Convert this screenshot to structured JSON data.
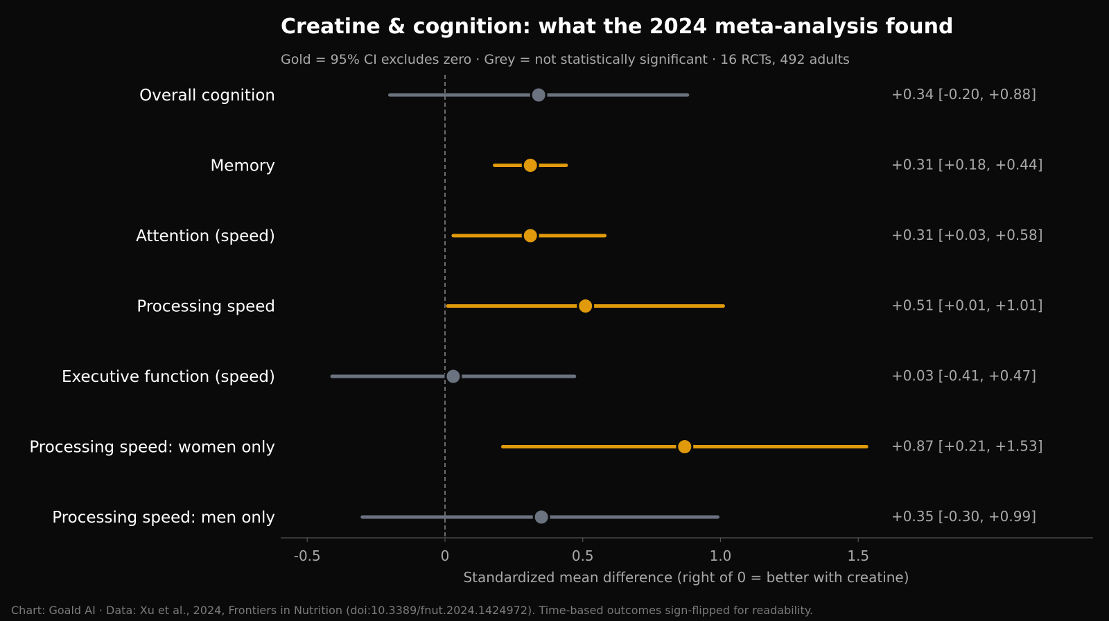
{
  "chart_data": {
    "type": "forest",
    "title": "Creatine & cognition: what the 2024 meta-analysis found",
    "subtitle": "Gold = 95% CI excludes zero · Grey = not statistically significant · 16 RCTs, 492 adults",
    "xlabel": "Standardized mean difference (right of 0 = better with creatine)",
    "xlim": [
      -0.6,
      2.35
    ],
    "xticks": [
      -0.5,
      0,
      0.5,
      1.0,
      1.5
    ],
    "xtick_labels": [
      "-0.5",
      "0",
      "0.5",
      "1.0",
      "1.5"
    ],
    "reference_line": 0,
    "footer": "Chart: Goald AI · Data: Xu et al., 2024, Frontiers in Nutrition (doi:10.3389/fnut.2024.1424972). Time-based outcomes sign-flipped for readability.",
    "colors": {
      "significant": "#e09a0b",
      "not_significant": "#6b7280",
      "background": "#0a0a0a"
    },
    "outcomes": [
      {
        "label": "Overall cognition",
        "estimate": 0.34,
        "ci_low": -0.2,
        "ci_high": 0.88,
        "significant": false,
        "annotation": "+0.34  [-0.20, +0.88]"
      },
      {
        "label": "Memory",
        "estimate": 0.31,
        "ci_low": 0.18,
        "ci_high": 0.44,
        "significant": true,
        "annotation": "+0.31  [+0.18, +0.44]"
      },
      {
        "label": "Attention (speed)",
        "estimate": 0.31,
        "ci_low": 0.03,
        "ci_high": 0.58,
        "significant": true,
        "annotation": "+0.31  [+0.03, +0.58]"
      },
      {
        "label": "Processing speed",
        "estimate": 0.51,
        "ci_low": 0.01,
        "ci_high": 1.01,
        "significant": true,
        "annotation": "+0.51  [+0.01, +1.01]"
      },
      {
        "label": "Executive function (speed)",
        "estimate": 0.03,
        "ci_low": -0.41,
        "ci_high": 0.47,
        "significant": false,
        "annotation": "+0.03  [-0.41, +0.47]"
      },
      {
        "label": "Processing speed: women only",
        "estimate": 0.87,
        "ci_low": 0.21,
        "ci_high": 1.53,
        "significant": true,
        "annotation": "+0.87  [+0.21, +1.53]"
      },
      {
        "label": "Processing speed: men only",
        "estimate": 0.35,
        "ci_low": -0.3,
        "ci_high": 0.99,
        "significant": false,
        "annotation": "+0.35  [-0.30, +0.99]"
      }
    ]
  }
}
